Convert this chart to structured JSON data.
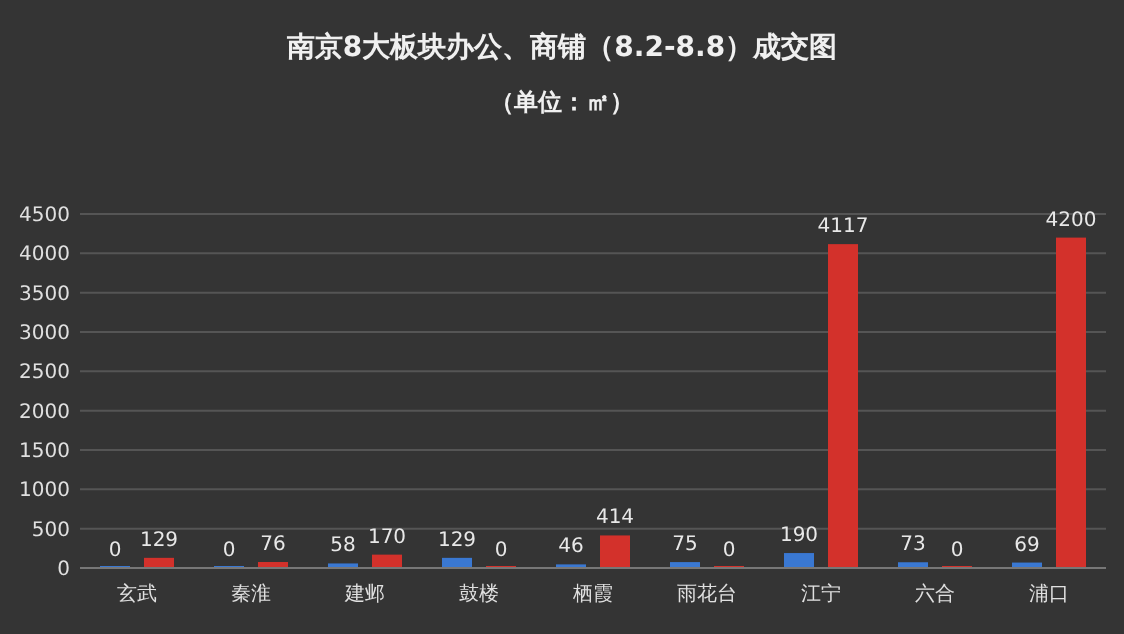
{
  "chart_data": {
    "type": "bar",
    "title": "南京8大板块办公、商铺（8.2-8.8）成交图",
    "subtitle": "（单位：㎡）",
    "categories": [
      "玄武",
      "秦淮",
      "建邺",
      "鼓楼",
      "栖霞",
      "雨花台",
      "江宁",
      "六合",
      "浦口"
    ],
    "series": [
      {
        "color": "#3a78d2",
        "values": [
          0,
          0,
          58,
          129,
          46,
          75,
          190,
          73,
          69
        ]
      },
      {
        "color": "#d3312b",
        "values": [
          129,
          76,
          170,
          0,
          414,
          0,
          4117,
          0,
          4200
        ]
      }
    ],
    "ylim": [
      0,
      4500
    ],
    "yticks": [
      0,
      500,
      1000,
      1500,
      2000,
      2500,
      3000,
      3500,
      4000,
      4500
    ],
    "grid": "y",
    "data_labels": true
  }
}
